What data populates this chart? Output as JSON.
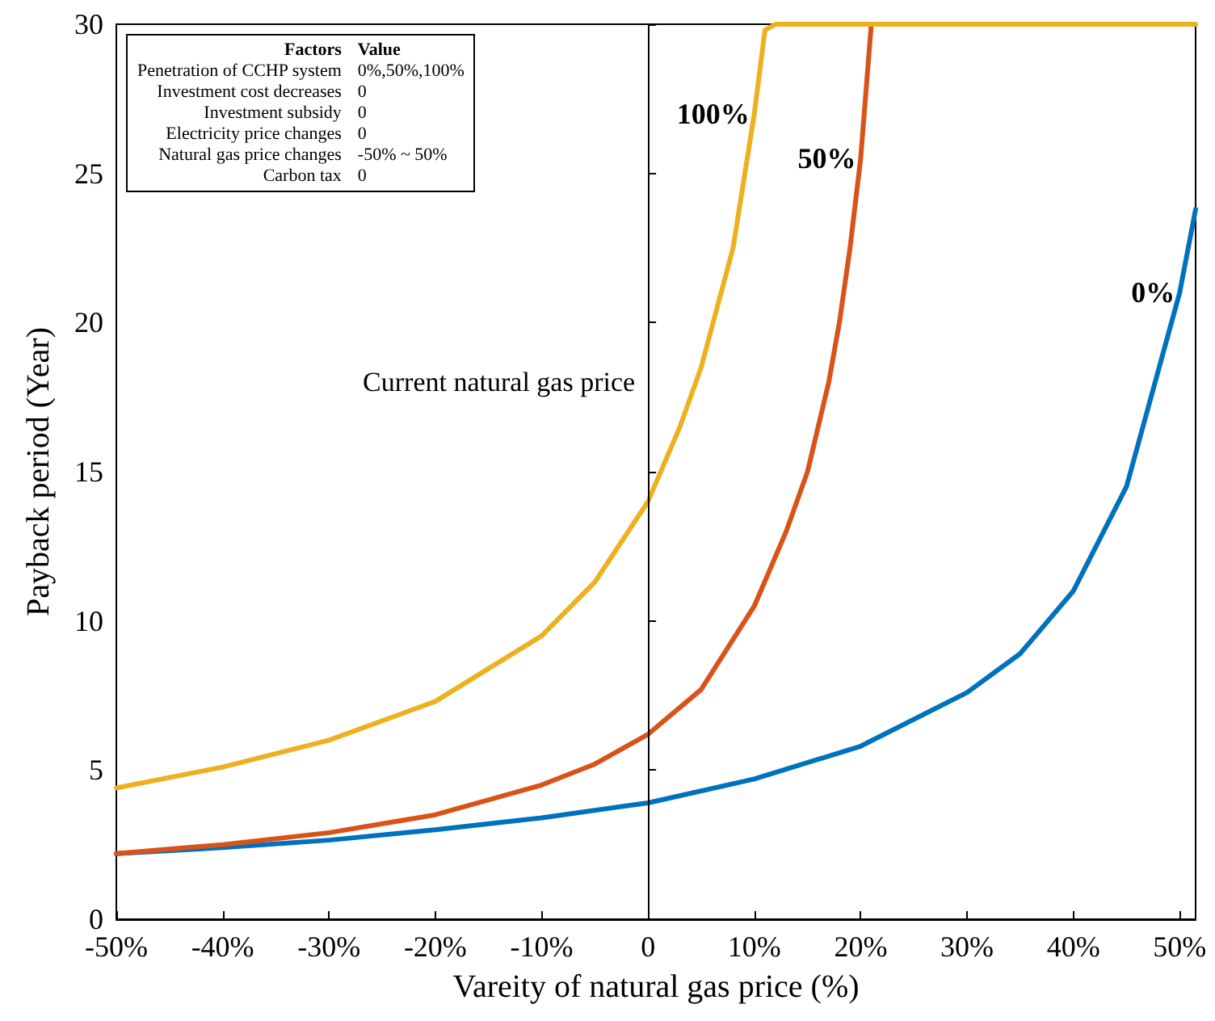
{
  "chart_data": {
    "type": "line",
    "xlabel": "Vareity of natural gas price (%)",
    "ylabel": "Payback period (Year)",
    "xlim": [
      -50,
      51.5
    ],
    "xticks": [
      {
        "value": -50,
        "label": "-50%"
      },
      {
        "value": -40,
        "label": "-40%"
      },
      {
        "value": -30,
        "label": "-30%"
      },
      {
        "value": -20,
        "label": "-20%"
      },
      {
        "value": -10,
        "label": "-10%"
      },
      0,
      {
        "value": 10,
        "label": "10%"
      },
      {
        "value": 20,
        "label": "20%"
      },
      {
        "value": 30,
        "label": "30%"
      },
      {
        "value": 40,
        "label": "40%"
      },
      {
        "value": 50,
        "label": "50%"
      }
    ],
    "ylim": [
      0,
      30
    ],
    "yticks": [
      0,
      5,
      10,
      15,
      20,
      25,
      30
    ],
    "grid": false,
    "legend": false,
    "marker": "none",
    "line_style": "solid",
    "series": [
      {
        "name": "0%",
        "color": "#0072bd",
        "x": [
          -50,
          -40,
          -30,
          -20,
          -10,
          0,
          10,
          20,
          30,
          35,
          40,
          45,
          50,
          51.5
        ],
        "values": [
          2.2,
          2.4,
          2.65,
          3.0,
          3.4,
          3.9,
          4.7,
          5.8,
          7.6,
          8.9,
          11,
          14.5,
          21,
          23.8
        ]
      },
      {
        "name": "50%",
        "color": "#d95319",
        "x": [
          -50,
          -40,
          -30,
          -20,
          -10,
          -5,
          0,
          5,
          10,
          13,
          15,
          17,
          18,
          19,
          20,
          21
        ],
        "values": [
          2.2,
          2.5,
          2.9,
          3.5,
          4.5,
          5.2,
          6.2,
          7.7,
          10.5,
          13,
          15,
          18,
          20,
          22.5,
          25.5,
          30
        ]
      },
      {
        "name": "100%",
        "color": "#edb120",
        "x": [
          -50,
          -40,
          -30,
          -20,
          -10,
          -5,
          0,
          3,
          5,
          8,
          10,
          11,
          12,
          20,
          30,
          40,
          51.5
        ],
        "values": [
          4.4,
          5.1,
          6.0,
          7.3,
          9.5,
          11.3,
          14,
          16.5,
          18.5,
          22.5,
          27,
          29.8,
          30,
          30,
          30,
          30,
          30
        ]
      }
    ],
    "ref_lines": [
      {
        "axis": "x",
        "value": 0,
        "label": "Current natural gas price",
        "color": "#000000"
      }
    ],
    "annotations": [
      "Factors",
      "Value",
      "Penetration of CCHP system",
      "0%,50%,100%",
      "Investment cost decreases",
      "0",
      "Investment subsidy",
      "0",
      "Electricity price changes",
      "0",
      "Natural gas price changes",
      "-50% ~ 50%",
      "Carbon tax",
      "0"
    ]
  }
}
